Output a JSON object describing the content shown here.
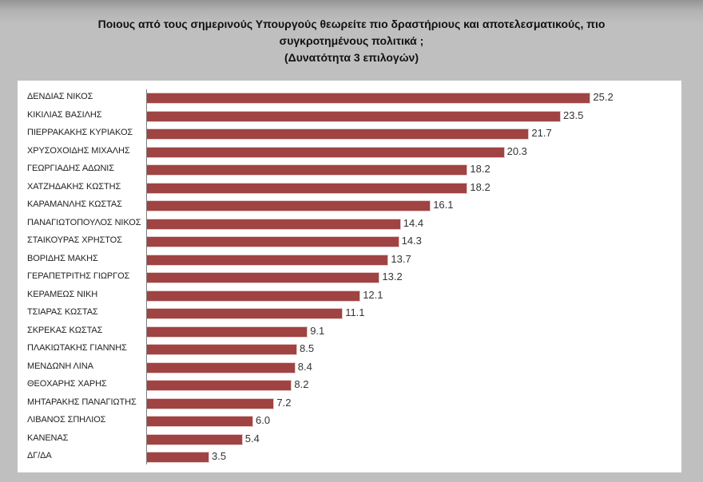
{
  "title": {
    "line1": "Ποιους από τους σημερινούς Υπουργούς θεωρείτε πιο δραστήριους και αποτελεσματικούς, πιο",
    "line2": "συγκροτημένους πολιτικά ;",
    "line3": "(Δυνατότητα 3 επιλογών)"
  },
  "colors": {
    "bar": "#a04343",
    "background": "#bfbfbf",
    "panel": "#ffffff"
  },
  "chart_data": {
    "type": "bar",
    "orientation": "horizontal",
    "title": "Ποιους από τους σημερινούς Υπουργούς θεωρείτε πιο δραστήριους και αποτελεσματικούς, πιο συγκροτημένους πολιτικά ; (Δυνατότητα 3 επιλογών)",
    "xlabel": "",
    "ylabel": "",
    "grid": false,
    "legend": null,
    "categories": [
      "ΔΕΝΔΙΑΣ ΝΙΚΟΣ",
      "ΚΙΚΙΛΙΑΣ ΒΑΣΙΛΗΣ",
      "ΠΙΕΡΡΑΚΑΚΗΣ ΚΥΡΙΑΚΟΣ",
      "ΧΡΥΣΟΧΟΙΔΗΣ ΜΙΧΑΛΗΣ",
      "ΓΕΩΡΓΙΑΔΗΣ ΑΔΩΝΙΣ",
      "ΧΑΤΖΗΔΑΚΗΣ ΚΩΣΤΗΣ",
      "ΚΑΡΑΜΑΝΛΗΣ ΚΩΣΤΑΣ",
      "ΠΑΝΑΓΙΩΤΟΠΟΥΛΟΣ ΝΙΚΟΣ",
      "ΣΤΑΙΚΟΥΡΑΣ ΧΡΗΣΤΟΣ",
      "ΒΟΡΙΔΗΣ ΜΑΚΗΣ",
      "ΓΕΡΑΠΕΤΡΙΤΗΣ ΓΙΩΡΓΟΣ",
      "ΚΕΡΑΜΕΩΣ ΝΙΚΗ",
      "ΤΣΙΑΡΑΣ ΚΩΣΤΑΣ",
      "ΣΚΡΕΚΑΣ ΚΩΣΤΑΣ",
      "ΠΛΑΚΙΩΤΑΚΗΣ ΓΙΑΝΝΗΣ",
      "ΜΕΝΔΩΝΗ ΛΙΝΑ",
      "ΘΕΟΧΑΡΗΣ ΧΑΡΗΣ",
      "ΜΗΤΑΡΑΚΗΣ ΠΑΝΑΓΙΩΤΗΣ",
      "ΛΙΒΑΝΟΣ ΣΠΗΛΙΟΣ",
      "ΚΑΝΕΝΑΣ",
      "ΔΓ/ΔΑ"
    ],
    "values": [
      25.2,
      23.5,
      21.7,
      20.3,
      18.2,
      18.2,
      16.1,
      14.4,
      14.3,
      13.7,
      13.2,
      12.1,
      11.1,
      9.1,
      8.5,
      8.4,
      8.2,
      7.2,
      6.0,
      5.4,
      3.5
    ],
    "value_labels": [
      "25.2",
      "23.5",
      "21.7",
      "20.3",
      "18.2",
      "18.2",
      "16.1",
      "14.4",
      "14.3",
      "13.7",
      "13.2",
      "12.1",
      "11.1",
      "9.1",
      "8.5",
      "8.4",
      "8.2",
      "7.2",
      "6.0",
      "5.4",
      "3.5"
    ],
    "xlim": [
      0,
      30
    ]
  }
}
